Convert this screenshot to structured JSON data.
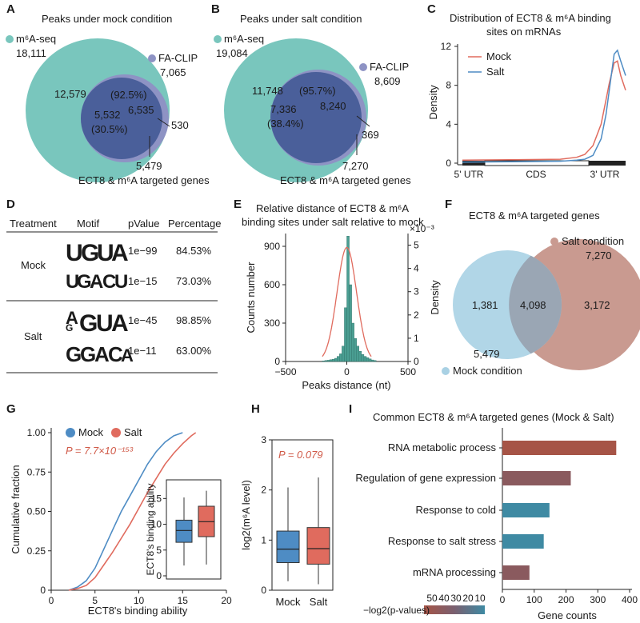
{
  "panel_labels": [
    "A",
    "B",
    "C",
    "D",
    "E",
    "F",
    "G",
    "H",
    "I"
  ],
  "colors": {
    "teal": "#79c6bd",
    "navy": "#4a5f9a",
    "purple": "#8e93c4",
    "red": "#e06b5e",
    "blue": "#4e8cc4",
    "lightblue": "#a9d1e4",
    "tan": "#c99a90",
    "barred": "#a65446",
    "bargrey": "#8a5a5e",
    "barteal": "#3f8aa3"
  },
  "chart_data": [
    {
      "id": "A",
      "type": "venn",
      "title": "Peaks under mock condition",
      "set1": {
        "name": "m⁶A-seq",
        "total": "18,111"
      },
      "set2": {
        "name": "FA-CLIP",
        "total": "7,065"
      },
      "values": {
        "left_only": "12,579",
        "overlap": "5,532",
        "overlap_pct": "(30.5%)",
        "right_only": "6,535",
        "right_pct": "(92.5%)",
        "outer": "530",
        "genes": "5,479"
      },
      "annotation": "ECT8 & m⁶A targeted genes"
    },
    {
      "id": "B",
      "type": "venn",
      "title": "Peaks under salt condition",
      "set1": {
        "name": "m⁶A-seq",
        "total": "19,084"
      },
      "set2": {
        "name": "FA-CLIP",
        "total": "8,609"
      },
      "values": {
        "left_only": "11,748",
        "overlap": "7,336",
        "overlap_pct": "(38.4%)",
        "right_only": "8,240",
        "right_pct": "(95.7%)",
        "outer": "369",
        "genes": "7,270"
      },
      "annotation": "ECT8 & m⁶A targeted genes"
    },
    {
      "id": "C",
      "type": "line",
      "title_lines": [
        "Distribution of ECT8 & m⁶A binding",
        "sites on mRNAs"
      ],
      "ylabel": "Density",
      "ylim": [
        0,
        12
      ],
      "yticks": [
        "0",
        "4",
        "8",
        "12"
      ],
      "xregions": [
        "5' UTR",
        "CDS",
        "3' UTR"
      ],
      "series": [
        {
          "name": "Mock",
          "x": [
            0,
            0.3,
            0.6,
            0.7,
            0.75,
            0.8,
            0.85,
            0.88,
            0.9,
            0.93,
            0.95,
            0.97,
            1.0
          ],
          "y": [
            0.3,
            0.35,
            0.4,
            0.6,
            0.9,
            1.8,
            4,
            6.5,
            8.2,
            10.3,
            10.5,
            9,
            7.5
          ]
        },
        {
          "name": "Salt",
          "x": [
            0,
            0.3,
            0.6,
            0.7,
            0.75,
            0.8,
            0.85,
            0.88,
            0.9,
            0.93,
            0.95,
            0.97,
            1.0
          ],
          "y": [
            0.1,
            0.15,
            0.2,
            0.3,
            0.4,
            0.8,
            2.5,
            5,
            7.5,
            11.2,
            11.6,
            10.5,
            9
          ]
        }
      ]
    },
    {
      "id": "D",
      "type": "table",
      "headers": [
        "Treatment",
        "Motif",
        "pValue",
        "Percentage"
      ],
      "rows": [
        {
          "group": "Mock",
          "motif": "UGUA",
          "p": "1e−99",
          "pct": "84.53%"
        },
        {
          "group": "",
          "motif": "UGACU",
          "p": "1e−15",
          "pct": "73.03%"
        },
        {
          "group": "Salt",
          "motif": "UGUA",
          "p": "1e−45",
          "pct": "98.85%"
        },
        {
          "group": "",
          "motif": "GGACA",
          "p": "1e−11",
          "pct": "63.00%"
        }
      ]
    },
    {
      "id": "E",
      "type": "histogram",
      "title_lines": [
        "Relative distance of ECT8 & m⁶A",
        "binding sites under salt relative to mock"
      ],
      "xlabel": "Peaks distance (nt)",
      "ylabel": "Counts number",
      "y2label": "Density",
      "y2_exponent": "×10⁻³",
      "xlim": [
        -500,
        500
      ],
      "ylim": [
        0,
        1000
      ],
      "y2lim": [
        0,
        5.5
      ],
      "xticks": [
        "−500",
        "0",
        "500"
      ],
      "yticks": [
        "0",
        "300",
        "600",
        "900"
      ],
      "y2ticks": [
        "0",
        "1",
        "2",
        "3",
        "4",
        "5"
      ],
      "bins_x": [
        -200,
        -180,
        -160,
        -140,
        -120,
        -100,
        -80,
        -60,
        -40,
        -20,
        0,
        20,
        40,
        60,
        80,
        100,
        120,
        140,
        160,
        180,
        200,
        220
      ],
      "bins_count": [
        5,
        8,
        10,
        14,
        18,
        25,
        40,
        60,
        120,
        420,
        980,
        600,
        300,
        180,
        120,
        80,
        55,
        40,
        30,
        20,
        12,
        8
      ],
      "density_sd": 80,
      "density_peak": 4.9
    },
    {
      "id": "F",
      "type": "venn",
      "title": "ECT8 & m⁶A targeted genes",
      "set1": {
        "name": "Mock condition",
        "total": "5,479"
      },
      "set2": {
        "name": "Salt condition",
        "total": "7,270"
      },
      "values": {
        "left_only": "1,381",
        "overlap": "4,098",
        "right_only": "3,172"
      }
    },
    {
      "id": "G",
      "type": "ecdf",
      "xlabel": "ECT8's binding ability",
      "ylabel": "Cumulative fraction",
      "xlim": [
        0,
        20
      ],
      "ylim": [
        0,
        1
      ],
      "xticks": [
        "0",
        "5",
        "10",
        "15",
        "20"
      ],
      "yticks": [
        "0",
        "0.25",
        "0.50",
        "0.75",
        "1.00"
      ],
      "pvalue": "P = 7.7×10⁻¹⁵³",
      "series": [
        {
          "name": "Mock",
          "x": [
            2,
            3,
            4,
            5,
            6,
            7,
            8,
            9,
            10,
            11,
            12,
            13,
            14,
            15
          ],
          "y": [
            0,
            0.02,
            0.06,
            0.14,
            0.26,
            0.38,
            0.5,
            0.6,
            0.7,
            0.8,
            0.88,
            0.94,
            0.98,
            1.0
          ]
        },
        {
          "name": "Salt",
          "x": [
            2,
            3,
            4,
            5,
            6,
            7,
            8,
            9,
            10,
            11,
            12,
            13,
            14,
            15,
            16,
            16.5
          ],
          "y": [
            0,
            0.01,
            0.03,
            0.08,
            0.16,
            0.24,
            0.33,
            0.42,
            0.52,
            0.62,
            0.71,
            0.8,
            0.87,
            0.93,
            0.98,
            1.0
          ]
        }
      ],
      "inset": {
        "ylabel": "ECT8's binding ability",
        "yticks": [
          "0",
          "5",
          "10",
          "15"
        ],
        "ylim": [
          0,
          18
        ],
        "boxes": [
          {
            "name": "Mock",
            "min": 2,
            "q1": 6.5,
            "median": 8.8,
            "q3": 10.8,
            "max": 15.2
          },
          {
            "name": "Salt",
            "min": 2.2,
            "q1": 7.6,
            "median": 10.5,
            "q3": 13.5,
            "max": 16.5
          }
        ]
      }
    },
    {
      "id": "H",
      "type": "box",
      "ylabel": "log2(m⁶A level)",
      "ylim": [
        0,
        3
      ],
      "yticks": [
        "0",
        "1",
        "2",
        "3"
      ],
      "pvalue": "P = 0.079",
      "categories": [
        "Mock",
        "Salt"
      ],
      "boxes": [
        {
          "name": "Mock",
          "min": 0.18,
          "q1": 0.55,
          "median": 0.82,
          "q3": 1.18,
          "max": 2.05
        },
        {
          "name": "Salt",
          "min": 0.12,
          "q1": 0.52,
          "median": 0.83,
          "q3": 1.25,
          "max": 2.25
        }
      ]
    },
    {
      "id": "I",
      "type": "bar",
      "orientation": "horizontal",
      "title": "Common ECT8 & m⁶A targeted genes (Mock & Salt)",
      "xlabel": "Gene counts",
      "xlim": [
        0,
        400
      ],
      "xticks": [
        "0",
        "100",
        "200",
        "300",
        "400"
      ],
      "categories": [
        "RNA metabolic process",
        "Regulation of gene expression",
        "Response to cold",
        "Response to salt stress",
        "mRNA processing"
      ],
      "values": [
        358,
        215,
        148,
        130,
        85
      ],
      "bar_colors": [
        "#a65446",
        "#8a5a5e",
        "#3f8aa3",
        "#3f8aa3",
        "#8a5a5e"
      ],
      "legend_title": "−log2(p-values)",
      "legend_ticks": [
        "50",
        "40",
        "30",
        "20",
        "10"
      ]
    }
  ]
}
